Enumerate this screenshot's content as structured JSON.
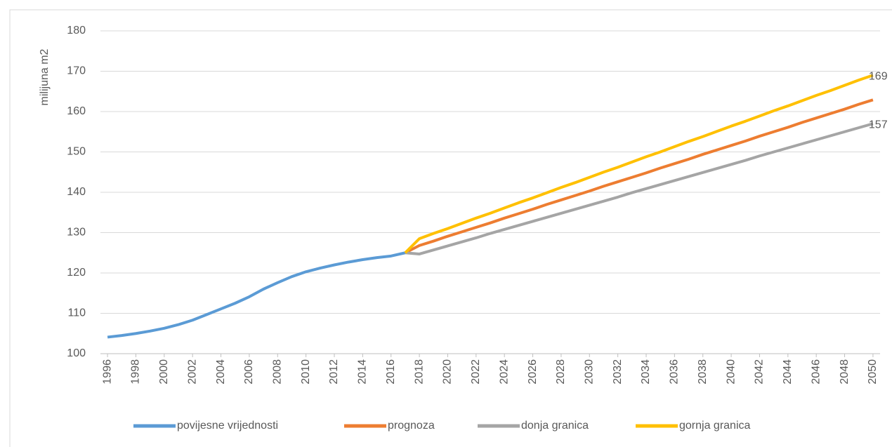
{
  "chart_data": {
    "type": "line",
    "ylabel": "milijuna m2",
    "x": [
      1996,
      1997,
      1998,
      1999,
      2000,
      2001,
      2002,
      2003,
      2004,
      2005,
      2006,
      2007,
      2008,
      2009,
      2010,
      2011,
      2012,
      2013,
      2014,
      2015,
      2016,
      2017,
      2018,
      2019,
      2020,
      2021,
      2022,
      2023,
      2024,
      2025,
      2026,
      2027,
      2028,
      2029,
      2030,
      2031,
      2032,
      2033,
      2034,
      2035,
      2036,
      2037,
      2038,
      2039,
      2040,
      2041,
      2042,
      2043,
      2044,
      2045,
      2046,
      2047,
      2048,
      2049,
      2050
    ],
    "xlim": [
      1995.5,
      2050.5
    ],
    "xticks": [
      1996,
      1998,
      2000,
      2002,
      2004,
      2006,
      2008,
      2010,
      2012,
      2014,
      2016,
      2018,
      2020,
      2022,
      2024,
      2026,
      2028,
      2030,
      2032,
      2034,
      2036,
      2038,
      2040,
      2042,
      2044,
      2046,
      2048,
      2050
    ],
    "ylim": [
      100,
      180
    ],
    "yticks": [
      100,
      110,
      120,
      130,
      140,
      150,
      160,
      170,
      180
    ],
    "grid": true,
    "legend": "bottom",
    "series": [
      {
        "name": "povijesne vrijednosti",
        "color": "#5b9bd5",
        "values": [
          104.1,
          104.5,
          105,
          105.6,
          106.3,
          107.2,
          108.3,
          109.7,
          111.1,
          112.5,
          114.1,
          116,
          117.6,
          119.1,
          120.3,
          121.2,
          122,
          122.7,
          123.3,
          123.8,
          124.2,
          125,
          null,
          null,
          null,
          null,
          null,
          null,
          null,
          null,
          null,
          null,
          null,
          null,
          null,
          null,
          null,
          null,
          null,
          null,
          null,
          null,
          null,
          null,
          null,
          null,
          null,
          null,
          null,
          null,
          null,
          null,
          null,
          null,
          null
        ]
      },
      {
        "name": "prognoza",
        "color": "#ed7d31",
        "values": [
          null,
          null,
          null,
          null,
          null,
          null,
          null,
          null,
          null,
          null,
          null,
          null,
          null,
          null,
          null,
          null,
          null,
          null,
          null,
          null,
          null,
          125,
          126.8,
          127.9,
          129.1,
          130.2,
          131.3,
          132.4,
          133.6,
          134.7,
          135.8,
          137.0,
          138.1,
          139.2,
          140.3,
          141.5,
          142.6,
          143.7,
          144.8,
          146.0,
          147.1,
          148.2,
          149.4,
          150.5,
          151.6,
          152.7,
          153.9,
          155.0,
          156.1,
          157.3,
          158.4,
          159.5,
          160.6,
          161.8,
          162.9
        ]
      },
      {
        "name": "donja granica",
        "color": "#a5a5a5",
        "values": [
          null,
          null,
          null,
          null,
          null,
          null,
          null,
          null,
          null,
          null,
          null,
          null,
          null,
          null,
          null,
          null,
          null,
          null,
          null,
          null,
          null,
          125,
          124.7,
          125.7,
          126.7,
          127.7,
          128.7,
          129.8,
          130.8,
          131.8,
          132.8,
          133.8,
          134.8,
          135.8,
          136.8,
          137.8,
          138.8,
          139.9,
          140.9,
          141.9,
          142.9,
          143.9,
          144.9,
          145.9,
          146.9,
          147.9,
          149.0,
          150.0,
          151.0,
          152.0,
          153.0,
          154.0,
          155.0,
          156.0,
          157.0
        ],
        "value_labels": [
          null,
          null,
          null,
          null,
          null,
          null,
          null,
          null,
          null,
          null,
          null,
          null,
          null,
          null,
          null,
          null,
          null,
          null,
          null,
          null,
          null,
          null,
          null,
          null,
          null,
          null,
          null,
          null,
          null,
          null,
          null,
          null,
          null,
          null,
          null,
          null,
          null,
          null,
          null,
          null,
          null,
          null,
          null,
          null,
          null,
          null,
          null,
          null,
          null,
          null,
          null,
          null,
          null,
          null,
          "157"
        ]
      },
      {
        "name": "gornja granica",
        "color": "#ffc000",
        "values": [
          null,
          null,
          null,
          null,
          null,
          null,
          null,
          null,
          null,
          null,
          null,
          null,
          null,
          null,
          null,
          null,
          null,
          null,
          null,
          null,
          null,
          125,
          128.5,
          129.8,
          131.0,
          132.3,
          133.6,
          134.8,
          136.1,
          137.4,
          138.6,
          139.9,
          141.2,
          142.4,
          143.7,
          145.0,
          146.2,
          147.5,
          148.8,
          150.0,
          151.3,
          152.6,
          153.8,
          155.1,
          156.4,
          157.6,
          158.9,
          160.2,
          161.4,
          162.7,
          164.0,
          165.2,
          166.5,
          167.8,
          169.0
        ],
        "value_labels": [
          null,
          null,
          null,
          null,
          null,
          null,
          null,
          null,
          null,
          null,
          null,
          null,
          null,
          null,
          null,
          null,
          null,
          null,
          null,
          null,
          null,
          null,
          null,
          null,
          null,
          null,
          null,
          null,
          null,
          null,
          null,
          null,
          null,
          null,
          null,
          null,
          null,
          null,
          null,
          null,
          null,
          null,
          null,
          null,
          null,
          null,
          null,
          null,
          null,
          null,
          null,
          null,
          null,
          null,
          "169"
        ]
      }
    ]
  }
}
